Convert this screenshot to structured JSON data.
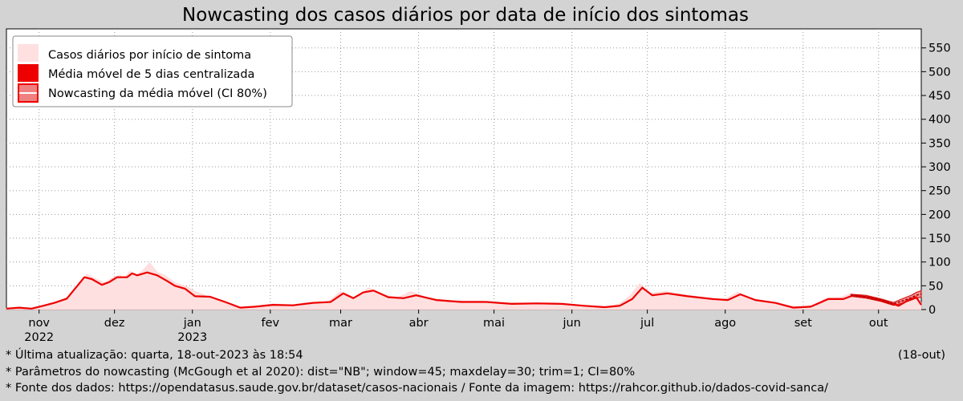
{
  "title": "Nowcasting dos casos diários por data de início dos sintomas",
  "footer": {
    "updated": "* Última atualização: quarta, 18-out-2023 às 18:54",
    "updated_short": "(18-out)",
    "params": "* Parâmetros do nowcasting (McGough et al 2020): dist=\"NB\"; window=45; maxdelay=30; trim=1; CI=80%",
    "source": "* Fonte dos dados: https://opendatasus.saude.gov.br/dataset/casos-nacionais   /   Fonte da imagem: https://rahcor.github.io/dados-covid-sanca/"
  },
  "colors": {
    "background": "#d3d3d3",
    "plot_bg": "#ffffff",
    "daily_fill": "#ffe0e0",
    "moving_avg": "#ee0000",
    "nowcast_ci": "#f08080"
  },
  "chart_data": {
    "type": "area",
    "title": "Nowcasting dos casos diários por data de início dos sintomas",
    "xlabel": "",
    "ylabel": "",
    "x_start": "2022-10-19",
    "x_end": "2023-10-18",
    "ylim": [
      0,
      590
    ],
    "yticks": [
      0,
      50,
      100,
      150,
      200,
      250,
      300,
      350,
      400,
      450,
      500,
      550
    ],
    "ytick_labels": [
      "0",
      "50",
      "100",
      "150",
      "200",
      "250",
      "300",
      "350",
      "400",
      "450",
      "500",
      "550"
    ],
    "y_axis_side": "right",
    "grid": true,
    "legend_position": "top-left",
    "xticks": [
      {
        "date": "2022-11-01",
        "label": "nov",
        "year": "2022"
      },
      {
        "date": "2022-12-01",
        "label": "dez",
        "year": ""
      },
      {
        "date": "2023-01-01",
        "label": "jan",
        "year": "2023"
      },
      {
        "date": "2023-02-01",
        "label": "fev",
        "year": ""
      },
      {
        "date": "2023-03-01",
        "label": "mar",
        "year": ""
      },
      {
        "date": "2023-04-01",
        "label": "abr",
        "year": ""
      },
      {
        "date": "2023-05-01",
        "label": "mai",
        "year": ""
      },
      {
        "date": "2023-06-01",
        "label": "jun",
        "year": ""
      },
      {
        "date": "2023-07-01",
        "label": "jul",
        "year": ""
      },
      {
        "date": "2023-08-01",
        "label": "ago",
        "year": ""
      },
      {
        "date": "2023-09-01",
        "label": "set",
        "year": ""
      },
      {
        "date": "2023-10-01",
        "label": "out",
        "year": ""
      }
    ],
    "series": [
      {
        "name": "Casos diários por início de sintoma",
        "kind": "area",
        "points": [
          [
            "2022-10-19",
            3
          ],
          [
            "2022-10-24",
            4
          ],
          [
            "2022-10-28",
            2
          ],
          [
            "2022-11-01",
            5
          ],
          [
            "2022-11-05",
            12
          ],
          [
            "2022-11-09",
            18
          ],
          [
            "2022-11-13",
            28
          ],
          [
            "2022-11-18",
            62
          ],
          [
            "2022-11-20",
            74
          ],
          [
            "2022-11-23",
            66
          ],
          [
            "2022-11-27",
            56
          ],
          [
            "2022-11-30",
            66
          ],
          [
            "2022-12-03",
            72
          ],
          [
            "2022-12-05",
            66
          ],
          [
            "2022-12-07",
            80
          ],
          [
            "2022-12-10",
            72
          ],
          [
            "2022-12-13",
            86
          ],
          [
            "2022-12-15",
            98
          ],
          [
            "2022-12-18",
            78
          ],
          [
            "2022-12-21",
            72
          ],
          [
            "2022-12-25",
            56
          ],
          [
            "2022-12-29",
            50
          ],
          [
            "2023-01-02",
            38
          ],
          [
            "2023-01-06",
            30
          ],
          [
            "2023-01-10",
            22
          ],
          [
            "2023-01-16",
            8
          ],
          [
            "2023-01-20",
            4
          ],
          [
            "2023-01-26",
            7
          ],
          [
            "2023-02-02",
            12
          ],
          [
            "2023-02-10",
            10
          ],
          [
            "2023-02-18",
            16
          ],
          [
            "2023-02-24",
            16
          ],
          [
            "2023-03-01",
            38
          ],
          [
            "2023-03-05",
            22
          ],
          [
            "2023-03-09",
            30
          ],
          [
            "2023-03-12",
            46
          ],
          [
            "2023-03-18",
            30
          ],
          [
            "2023-03-24",
            26
          ],
          [
            "2023-03-29",
            38
          ],
          [
            "2023-04-05",
            24
          ],
          [
            "2023-04-15",
            18
          ],
          [
            "2023-04-25",
            18
          ],
          [
            "2023-05-05",
            14
          ],
          [
            "2023-05-15",
            14
          ],
          [
            "2023-05-25",
            14
          ],
          [
            "2023-06-05",
            8
          ],
          [
            "2023-06-15",
            6
          ],
          [
            "2023-06-20",
            12
          ],
          [
            "2023-06-24",
            28
          ],
          [
            "2023-06-28",
            54
          ],
          [
            "2023-07-02",
            34
          ],
          [
            "2023-07-08",
            38
          ],
          [
            "2023-07-15",
            32
          ],
          [
            "2023-07-25",
            24
          ],
          [
            "2023-08-01",
            22
          ],
          [
            "2023-08-06",
            36
          ],
          [
            "2023-08-12",
            22
          ],
          [
            "2023-08-20",
            16
          ],
          [
            "2023-08-27",
            8
          ],
          [
            "2023-09-01",
            6
          ],
          [
            "2023-09-06",
            10
          ],
          [
            "2023-09-10",
            24
          ],
          [
            "2023-09-16",
            26
          ],
          [
            "2023-09-20",
            34
          ],
          [
            "2023-09-26",
            30
          ],
          [
            "2023-10-02",
            24
          ],
          [
            "2023-10-08",
            12
          ],
          [
            "2023-10-12",
            26
          ],
          [
            "2023-10-16",
            34
          ],
          [
            "2023-10-18",
            14
          ]
        ]
      },
      {
        "name": "Média móvel de 5 dias centralizada",
        "kind": "line",
        "points": [
          [
            "2022-10-19",
            2
          ],
          [
            "2022-10-24",
            4
          ],
          [
            "2022-10-29",
            2
          ],
          [
            "2022-11-02",
            7
          ],
          [
            "2022-11-07",
            14
          ],
          [
            "2022-11-12",
            23
          ],
          [
            "2022-11-17",
            55
          ],
          [
            "2022-11-19",
            68
          ],
          [
            "2022-11-22",
            64
          ],
          [
            "2022-11-26",
            52
          ],
          [
            "2022-11-29",
            58
          ],
          [
            "2022-12-02",
            68
          ],
          [
            "2022-12-06",
            68
          ],
          [
            "2022-12-08",
            76
          ],
          [
            "2022-12-10",
            72
          ],
          [
            "2022-12-14",
            78
          ],
          [
            "2022-12-18",
            72
          ],
          [
            "2022-12-22",
            60
          ],
          [
            "2022-12-25",
            50
          ],
          [
            "2022-12-29",
            44
          ],
          [
            "2023-01-02",
            28
          ],
          [
            "2023-01-08",
            27
          ],
          [
            "2023-01-14",
            16
          ],
          [
            "2023-01-20",
            4
          ],
          [
            "2023-01-26",
            6
          ],
          [
            "2023-02-02",
            10
          ],
          [
            "2023-02-10",
            9
          ],
          [
            "2023-02-18",
            14
          ],
          [
            "2023-02-25",
            16
          ],
          [
            "2023-03-02",
            34
          ],
          [
            "2023-03-06",
            24
          ],
          [
            "2023-03-10",
            36
          ],
          [
            "2023-03-14",
            40
          ],
          [
            "2023-03-20",
            26
          ],
          [
            "2023-03-26",
            24
          ],
          [
            "2023-03-31",
            30
          ],
          [
            "2023-04-08",
            20
          ],
          [
            "2023-04-18",
            16
          ],
          [
            "2023-04-28",
            16
          ],
          [
            "2023-05-08",
            12
          ],
          [
            "2023-05-18",
            13
          ],
          [
            "2023-05-28",
            12
          ],
          [
            "2023-06-06",
            8
          ],
          [
            "2023-06-14",
            5
          ],
          [
            "2023-06-20",
            8
          ],
          [
            "2023-06-25",
            22
          ],
          [
            "2023-06-29",
            46
          ],
          [
            "2023-07-03",
            30
          ],
          [
            "2023-07-09",
            34
          ],
          [
            "2023-07-17",
            28
          ],
          [
            "2023-07-27",
            22
          ],
          [
            "2023-08-02",
            20
          ],
          [
            "2023-08-07",
            32
          ],
          [
            "2023-08-13",
            20
          ],
          [
            "2023-08-21",
            14
          ],
          [
            "2023-08-28",
            4
          ],
          [
            "2023-09-04",
            6
          ],
          [
            "2023-09-11",
            22
          ],
          [
            "2023-09-17",
            22
          ],
          [
            "2023-09-21",
            30
          ],
          [
            "2023-09-27",
            26
          ],
          [
            "2023-10-03",
            18
          ],
          [
            "2023-10-09",
            8
          ],
          [
            "2023-10-13",
            20
          ],
          [
            "2023-10-16",
            26
          ],
          [
            "2023-10-18",
            10
          ]
        ]
      },
      {
        "name": "Nowcasting da média móvel (CI 80%)",
        "kind": "band",
        "points": [
          [
            "2023-09-20",
            28,
            32
          ],
          [
            "2023-09-26",
            24,
            30
          ],
          [
            "2023-10-02",
            17,
            22
          ],
          [
            "2023-10-07",
            9,
            15
          ],
          [
            "2023-10-11",
            14,
            24
          ],
          [
            "2023-10-14",
            20,
            30
          ],
          [
            "2023-10-16",
            24,
            36
          ],
          [
            "2023-10-18",
            26,
            40
          ]
        ],
        "center": [
          [
            "2023-09-20",
            30
          ],
          [
            "2023-09-26",
            27
          ],
          [
            "2023-10-02",
            20
          ],
          [
            "2023-10-07",
            12
          ],
          [
            "2023-10-11",
            19
          ],
          [
            "2023-10-14",
            25
          ],
          [
            "2023-10-16",
            30
          ],
          [
            "2023-10-18",
            33
          ]
        ]
      }
    ]
  }
}
